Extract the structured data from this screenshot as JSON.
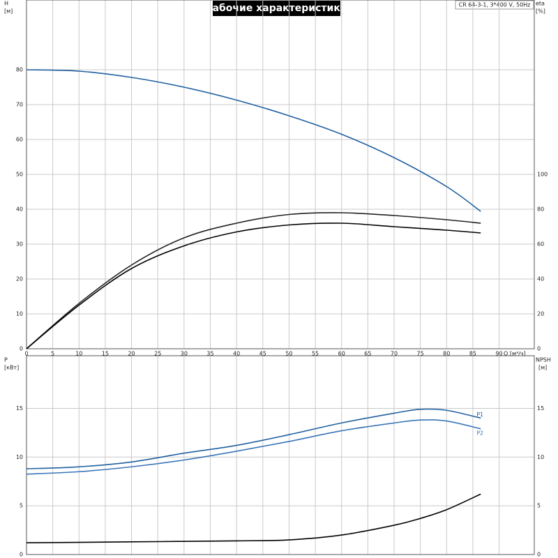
{
  "chart_data": [
    {
      "type": "line",
      "title": "Рабочие характеристики",
      "subtitle": "CR 64-3-1, 3*400 V, 50Hz",
      "xlabel": "Q [м³/ч]",
      "ylabel": "H",
      "yunit": "[м]",
      "y2label": "eta",
      "y2unit": "[%]",
      "x": [
        0,
        10,
        20,
        30,
        40,
        50,
        60,
        70,
        80,
        86.5
      ],
      "series": [
        {
          "color": "#1f5fa0",
          "values": [
            80,
            79.6,
            77.8,
            75,
            71.3,
            66.8,
            61.5,
            54.8,
            46.5,
            39.4
          ]
        },
        {
          "color": "#222222",
          "axis": "y2",
          "values": [
            0,
            26,
            48,
            63.6,
            72,
            77,
            78,
            76.4,
            74,
            72
          ]
        },
        {
          "color": "#000000",
          "axis": "y2",
          "values": [
            0,
            25,
            46,
            59,
            67,
            71,
            72,
            70,
            68,
            66.4
          ]
        }
      ],
      "xlim": [
        0,
        96.7
      ],
      "xticks": [
        0,
        5,
        10,
        15,
        20,
        25,
        30,
        35,
        40,
        45,
        50,
        55,
        60,
        65,
        70,
        75,
        80,
        85,
        90
      ],
      "ylim": [
        0,
        100
      ],
      "yticks": [
        0,
        10,
        20,
        30,
        40,
        50,
        60,
        70,
        80
      ],
      "y2lim": [
        0,
        200
      ],
      "y2ticks": [
        0,
        20,
        40,
        60,
        80,
        100
      ],
      "grid": true
    },
    {
      "type": "line",
      "ylabel": "P",
      "yunit": "[кВт]",
      "y2label": "NPSH",
      "y2unit": "[м]",
      "x": [
        0,
        10,
        20,
        30,
        40,
        50,
        60,
        70,
        75,
        80,
        86.5
      ],
      "series": [
        {
          "name": "P1",
          "color": "#1f5fa0",
          "values": [
            8.8,
            9.0,
            9.5,
            10.4,
            11.2,
            12.3,
            13.5,
            14.5,
            14.9,
            14.8,
            14.0
          ]
        },
        {
          "name": "P2",
          "color": "#3a74b8",
          "values": [
            8.25,
            8.5,
            9.0,
            9.7,
            10.6,
            11.6,
            12.7,
            13.5,
            13.8,
            13.7,
            12.9
          ]
        },
        {
          "color": "#000000",
          "axis": "y2",
          "values": [
            1.2,
            1.25,
            1.3,
            1.35,
            1.4,
            1.5,
            2.0,
            3.0,
            3.7,
            4.6,
            6.2
          ]
        }
      ],
      "xlim": [
        0,
        96.7
      ],
      "ylim": [
        0,
        20.4
      ],
      "yticks": [
        0,
        5,
        10,
        15
      ],
      "y2lim": [
        0,
        20.4
      ],
      "y2ticks": [
        0,
        5,
        10,
        15
      ],
      "grid": true
    }
  ]
}
